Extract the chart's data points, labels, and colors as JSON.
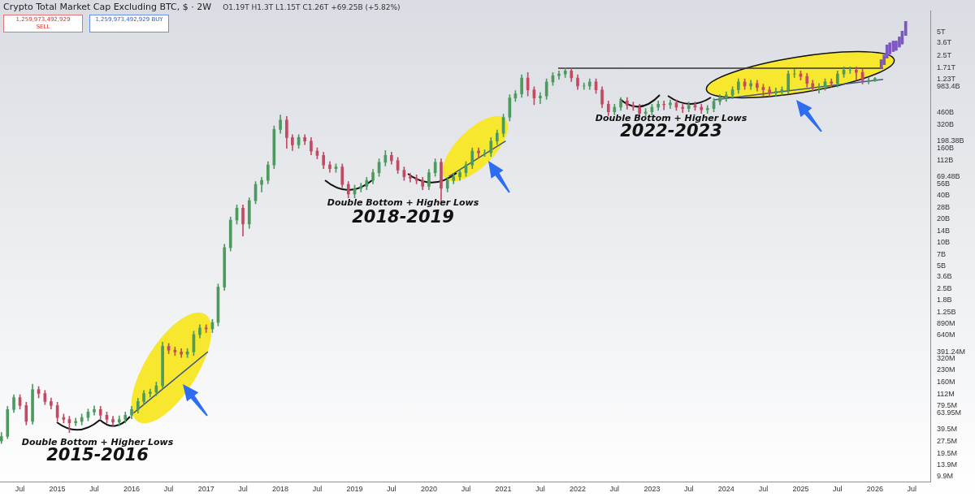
{
  "chart_data": {
    "type": "candlestick",
    "title": "Crypto Total Market Cap Excluding BTC, $ · 2W",
    "subtitle": "O1.19T H1.3T L1.15T C1.26T +69.25B (+5.82%)",
    "log": "y",
    "marker": "none",
    "line_style": "solid",
    "xlim": [
      "2014-03-25",
      "2026-09-30"
    ],
    "xticks": [
      {
        "value": "2014-07",
        "label": "Jul"
      },
      {
        "value": "2015",
        "label": "2015"
      },
      {
        "value": "2015-07",
        "label": "Jul"
      },
      {
        "value": "2016",
        "label": "2016"
      },
      {
        "value": "2016-07",
        "label": "Jul"
      },
      {
        "value": "2017",
        "label": "2017"
      },
      {
        "value": "2017-07",
        "label": "Jul"
      },
      {
        "value": "2018",
        "label": "2018"
      },
      {
        "value": "2018-07",
        "label": "Jul"
      },
      {
        "value": "2019",
        "label": "2019"
      },
      {
        "value": "2019-07",
        "label": "Jul"
      },
      {
        "value": "2020",
        "label": "2020"
      },
      {
        "value": "2020-07",
        "label": "Jul"
      },
      {
        "value": "2021",
        "label": "2021"
      },
      {
        "value": "2021-07",
        "label": "Jul"
      },
      {
        "value": "2022",
        "label": "2022"
      },
      {
        "value": "2022-07",
        "label": "Jul"
      },
      {
        "value": "2023",
        "label": "2023"
      },
      {
        "value": "2023-07",
        "label": "Jul"
      },
      {
        "value": "2024",
        "label": "2024"
      },
      {
        "value": "2024-07",
        "label": "Jul"
      },
      {
        "value": "2025",
        "label": "2025"
      },
      {
        "value": "2025-07",
        "label": "Jul"
      },
      {
        "value": "2026",
        "label": "2026"
      },
      {
        "value": "2026-07",
        "label": "Jul"
      }
    ],
    "ylim": [
      8400000.0,
      9300000000000.0
    ],
    "yticks": [
      {
        "value": 5000000000000.0,
        "label": "5T"
      },
      {
        "value": 3600000000000.0,
        "label": "3.6T"
      },
      {
        "value": 2500000000000.0,
        "label": "2.5T"
      },
      {
        "value": 1710000000000.0,
        "label": "1.71T"
      },
      {
        "value": 1230000000000.0,
        "label": "1.23T"
      },
      {
        "value": 983400000000.0,
        "label": "983.4B"
      },
      {
        "value": 460000000000.0,
        "label": "460B"
      },
      {
        "value": 320000000000.0,
        "label": "320B"
      },
      {
        "value": 198380000000.0,
        "label": "198.38B"
      },
      {
        "value": 160000000000.0,
        "label": "160B"
      },
      {
        "value": 112000000000.0,
        "label": "112B"
      },
      {
        "value": 69480000000.0,
        "label": "69.48B"
      },
      {
        "value": 56000000000.0,
        "label": "56B"
      },
      {
        "value": 40000000000.0,
        "label": "40B"
      },
      {
        "value": 28000000000.0,
        "label": "28B"
      },
      {
        "value": 20000000000.0,
        "label": "20B"
      },
      {
        "value": 14000000000.0,
        "label": "14B"
      },
      {
        "value": 10000000000.0,
        "label": "10B"
      },
      {
        "value": 7000000000.0,
        "label": "7B"
      },
      {
        "value": 5000000000.0,
        "label": "5B"
      },
      {
        "value": 3600000000.0,
        "label": "3.6B"
      },
      {
        "value": 2500000000.0,
        "label": "2.5B"
      },
      {
        "value": 1800000000.0,
        "label": "1.8B"
      },
      {
        "value": 1250000000.0,
        "label": "1.25B"
      },
      {
        "value": 890000000.0,
        "label": "890M"
      },
      {
        "value": 640000000.0,
        "label": "640M"
      },
      {
        "value": 391240000.0,
        "label": "391.24M"
      },
      {
        "value": 320000000.0,
        "label": "320M"
      },
      {
        "value": 230000000.0,
        "label": "230M"
      },
      {
        "value": 160000000.0,
        "label": "160M"
      },
      {
        "value": 112000000.0,
        "label": "112M"
      },
      {
        "value": 79500000.0,
        "label": "79.5M"
      },
      {
        "value": 63950000.0,
        "label": "63.95M"
      },
      {
        "value": 39500000.0,
        "label": "39.5M"
      },
      {
        "value": 27500000.0,
        "label": "27.5M"
      },
      {
        "value": 19500000.0,
        "label": "19.5M"
      },
      {
        "value": 13900000.0,
        "label": "13.9M"
      },
      {
        "value": 9900000.0,
        "label": "9.9M"
      }
    ],
    "annotations": [
      "Double Bottom + Higher Lows",
      "2015-2016",
      "Double Bottom + Higher Lows",
      "2018-2019",
      "Double Bottom + Higher Lows",
      "2022-2023",
      "1,259,973,492,929 SELL",
      "1,259,973,492,929 BUY"
    ],
    "series": [
      {
        "type": "line",
        "color": "#3d5a80",
        "x": [
          "2016-01-10",
          "2017-01-10"
        ],
        "values": [
          63950000.0,
          391240000.0
        ]
      },
      {
        "type": "line",
        "color": "#3d5a80",
        "x": [
          "2020-04-08",
          "2021-01-12"
        ],
        "values": [
          69480000000.0,
          198380000000.0
        ]
      },
      {
        "type": "line",
        "color": "#3d5a80",
        "x": [
          "2023-11-01",
          "2026-02-10"
        ],
        "values": [
          670000000000.0,
          1230000000000.0
        ]
      },
      {
        "type": "line",
        "color": "#333333",
        "x": [
          "2021-09-27",
          "2026-02-10"
        ],
        "values": [
          1710000000000.0,
          1710000000000.0
        ]
      },
      {
        "x": [
          "2014-04",
          "2014-05",
          "2014-06",
          "2014-07",
          "2014-08",
          "2014-09",
          "2014-10",
          "2014-11",
          "2014-12",
          "2015-01",
          "2015-02",
          "2015-03",
          "2015-04",
          "2015-05",
          "2015-06",
          "2015-07",
          "2015-08",
          "2015-09",
          "2015-10",
          "2015-11",
          "2015-12",
          "2016-01",
          "2016-02",
          "2016-03",
          "2016-04",
          "2016-05",
          "2016-06",
          "2016-07",
          "2016-08",
          "2016-09",
          "2016-10",
          "2016-11",
          "2016-12",
          "2017-01",
          "2017-02",
          "2017-03",
          "2017-04",
          "2017-05",
          "2017-06",
          "2017-07",
          "2017-08",
          "2017-09",
          "2017-10",
          "2017-11",
          "2017-12",
          "2018-01",
          "2018-02",
          "2018-03",
          "2018-04",
          "2018-05",
          "2018-06",
          "2018-07",
          "2018-08",
          "2018-09",
          "2018-10",
          "2018-11",
          "2018-12",
          "2019-01",
          "2019-02",
          "2019-03",
          "2019-04",
          "2019-05",
          "2019-06",
          "2019-07",
          "2019-08",
          "2019-09",
          "2019-10",
          "2019-11",
          "2019-12",
          "2020-01",
          "2020-02",
          "2020-03",
          "2020-04",
          "2020-05",
          "2020-06",
          "2020-07",
          "2020-08",
          "2020-09",
          "2020-10",
          "2020-11",
          "2020-12",
          "2021-01",
          "2021-02",
          "2021-03",
          "2021-04",
          "2021-05",
          "2021-06",
          "2021-07",
          "2021-08",
          "2021-09",
          "2021-10",
          "2021-11",
          "2021-12",
          "2022-01",
          "2022-02",
          "2022-03",
          "2022-04",
          "2022-05",
          "2022-06",
          "2022-07",
          "2022-08",
          "2022-09",
          "2022-10",
          "2022-11",
          "2022-12",
          "2023-01",
          "2023-02",
          "2023-03",
          "2023-04",
          "2023-05",
          "2023-06",
          "2023-07",
          "2023-08",
          "2023-09",
          "2023-10",
          "2023-11",
          "2023-12",
          "2024-01",
          "2024-02",
          "2024-03",
          "2024-04",
          "2024-05",
          "2024-06",
          "2024-07",
          "2024-08",
          "2024-09",
          "2024-10",
          "2024-11",
          "2024-12",
          "2025-01",
          "2025-02",
          "2025-03",
          "2025-04",
          "2025-05",
          "2025-06",
          "2025-07",
          "2025-08",
          "2025-09",
          "2025-10",
          "2025-11",
          "2025-12",
          "2026-01"
        ],
        "ohlc": [
          [
            28000000.0,
            36000000.0,
            26000000.0,
            32000000.0
          ],
          [
            32000000.0,
            78000000.0,
            30000000.0,
            71000000.0
          ],
          [
            71000000.0,
            110000000.0,
            65000000.0,
            101000000.0
          ],
          [
            101000000.0,
            110000000.0,
            72000000.0,
            80000000.0
          ],
          [
            80000000.0,
            88000000.0,
            45000000.0,
            50000000.0
          ],
          [
            50000000.0,
            150000000.0,
            46000000.0,
            128000000.0
          ],
          [
            128000000.0,
            140000000.0,
            100000000.0,
            114000000.0
          ],
          [
            114000000.0,
            125000000.0,
            82000000.0,
            90000000.0
          ],
          [
            90000000.0,
            100000000.0,
            72000000.0,
            80000000.0
          ],
          [
            80000000.0,
            88000000.0,
            50000000.0,
            56000000.0
          ],
          [
            56000000.0,
            62000000.0,
            48000000.0,
            53000000.0
          ],
          [
            53000000.0,
            58000000.0,
            36000000.0,
            48000000.0
          ],
          [
            48000000.0,
            55000000.0,
            44000000.0,
            50000000.0
          ],
          [
            50000000.0,
            62000000.0,
            45000000.0,
            56000000.0
          ],
          [
            56000000.0,
            72000000.0,
            51000000.0,
            66000000.0
          ],
          [
            66000000.0,
            79000000.0,
            60000000.0,
            71000000.0
          ],
          [
            71000000.0,
            78000000.0,
            54000000.0,
            60000000.0
          ],
          [
            60000000.0,
            66000000.0,
            48000000.0,
            53000000.0
          ],
          [
            53000000.0,
            58000000.0,
            44000000.0,
            49000000.0
          ],
          [
            49000000.0,
            59000000.0,
            44000000.0,
            53000000.0
          ],
          [
            53000000.0,
            66000000.0,
            48000000.0,
            60000000.0
          ],
          [
            60000000.0,
            78000000.0,
            54000000.0,
            71000000.0
          ],
          [
            71000000.0,
            99000000.0,
            64000000.0,
            90000000.0
          ],
          [
            90000000.0,
            125000000.0,
            81000000.0,
            114000000.0
          ],
          [
            114000000.0,
            130000000.0,
            103000000.0,
            119000000.0
          ],
          [
            119000000.0,
            160000000.0,
            107000000.0,
            143000000.0
          ],
          [
            143000000.0,
            520000000.0,
            130000000.0,
            460000000.0
          ],
          [
            460000000.0,
            500000000.0,
            370000000.0,
            410000000.0
          ],
          [
            410000000.0,
            450000000.0,
            350000000.0,
            390000000.0
          ],
          [
            390000000.0,
            430000000.0,
            330000000.0,
            365000000.0
          ],
          [
            365000000.0,
            430000000.0,
            330000000.0,
            390000000.0
          ],
          [
            390000000.0,
            720000000.0,
            350000000.0,
            650000000.0
          ],
          [
            650000000.0,
            870000000.0,
            590000000.0,
            790000000.0
          ],
          [
            790000000.0,
            870000000.0,
            690000000.0,
            770000000.0
          ],
          [
            770000000.0,
            1020000000.0,
            690000000.0,
            930000000.0
          ],
          [
            930000000.0,
            2900000000.0,
            840000000.0,
            2650000000.0
          ],
          [
            2650000000.0,
            9400000000.0,
            2400000000.0,
            8500000000.0
          ],
          [
            8500000000.0,
            21000000000.0,
            7700000000.0,
            19200000000.0
          ],
          [
            19200000000.0,
            30000000000.0,
            17000000000.0,
            27300000000.0
          ],
          [
            27300000000.0,
            30000000000.0,
            12000000000.0,
            17100000000.0
          ],
          [
            17100000000.0,
            37000000000.0,
            15000000000.0,
            34000000000.0
          ],
          [
            34000000000.0,
            60000000000.0,
            31000000000.0,
            55000000000.0
          ],
          [
            55000000000.0,
            68000000000.0,
            44000000000.0,
            62000000000.0
          ],
          [
            62000000000.0,
            108000000000.0,
            56000000000.0,
            98000000000.0
          ],
          [
            98000000000.0,
            310000000000.0,
            88000000000.0,
            280000000000.0
          ],
          [
            280000000000.0,
            430000000000.0,
            250000000000.0,
            370000000000.0
          ],
          [
            370000000000.0,
            410000000000.0,
            160000000000.0,
            220000000000.0
          ],
          [
            220000000000.0,
            240000000000.0,
            150000000000.0,
            177000000000.0
          ],
          [
            177000000000.0,
            240000000000.0,
            160000000000.0,
            220000000000.0
          ],
          [
            220000000000.0,
            240000000000.0,
            178000000000.0,
            198000000000.0
          ],
          [
            198000000000.0,
            220000000000.0,
            132000000000.0,
            147000000000.0
          ],
          [
            147000000000.0,
            162000000000.0,
            117000000000.0,
            130000000000.0
          ],
          [
            130000000000.0,
            143000000000.0,
            88000000000.0,
            98000000000.0
          ],
          [
            98000000000.0,
            108000000000.0,
            79000000000.0,
            88000000000.0
          ],
          [
            88000000000.0,
            101000000000.0,
            79000000000.0,
            92000000000.0
          ],
          [
            92000000000.0,
            101000000000.0,
            50000000000.0,
            55000000000.0
          ],
          [
            55000000000.0,
            60000000000.0,
            37000000000.0,
            41500000000.0
          ],
          [
            41500000000.0,
            54000000000.0,
            37000000000.0,
            49000000000.0
          ],
          [
            49000000000.0,
            57000000000.0,
            44000000000.0,
            52000000000.0
          ],
          [
            52000000000.0,
            68000000000.0,
            47000000000.0,
            62000000000.0
          ],
          [
            62000000000.0,
            86000000000.0,
            56000000000.0,
            78000000000.0
          ],
          [
            78000000000.0,
            117000000000.0,
            70000000000.0,
            106000000000.0
          ],
          [
            106000000000.0,
            150000000000.0,
            95000000000.0,
            130000000000.0
          ],
          [
            130000000000.0,
            143000000000.0,
            100000000000.0,
            111000000000.0
          ],
          [
            111000000000.0,
            122000000000.0,
            76000000000.0,
            84000000000.0
          ],
          [
            84000000000.0,
            92000000000.0,
            62000000000.0,
            69000000000.0
          ],
          [
            69000000000.0,
            76000000000.0,
            59000000000.0,
            66000000000.0
          ],
          [
            66000000000.0,
            73000000000.0,
            56000000000.0,
            62000000000.0
          ],
          [
            62000000000.0,
            68000000000.0,
            47000000000.0,
            52000000000.0
          ],
          [
            52000000000.0,
            86000000000.0,
            47000000000.0,
            78000000000.0
          ],
          [
            78000000000.0,
            117000000000.0,
            70000000000.0,
            106000000000.0
          ],
          [
            106000000000.0,
            117000000000.0,
            33000000000.0,
            49000000000.0
          ],
          [
            49000000000.0,
            68000000000.0,
            44000000000.0,
            62000000000.0
          ],
          [
            62000000000.0,
            76000000000.0,
            56000000000.0,
            69000000000.0
          ],
          [
            69000000000.0,
            86000000000.0,
            62000000000.0,
            78000000000.0
          ],
          [
            78000000000.0,
            108000000000.0,
            70000000000.0,
            98000000000.0
          ],
          [
            98000000000.0,
            162000000000.0,
            88000000000.0,
            147000000000.0
          ],
          [
            147000000000.0,
            162000000000.0,
            120000000000.0,
            140000000000.0
          ],
          [
            140000000000.0,
            154000000000.0,
            126000000000.0,
            140000000000.0
          ],
          [
            140000000000.0,
            220000000000.0,
            126000000000.0,
            198000000000.0
          ],
          [
            198000000000.0,
            275000000000.0,
            178000000000.0,
            250000000000.0
          ],
          [
            250000000000.0,
            440000000000.0,
            225000000000.0,
            400000000000.0
          ],
          [
            400000000000.0,
            780000000000.0,
            360000000000.0,
            710000000000.0
          ],
          [
            710000000000.0,
            880000000000.0,
            640000000000.0,
            800000000000.0
          ],
          [
            800000000000.0,
            1410000000000.0,
            720000000000.0,
            1280000000000.0
          ],
          [
            1280000000000.0,
            1500000000000.0,
            750000000000.0,
            900000000000.0
          ],
          [
            900000000000.0,
            990000000000.0,
            580000000000.0,
            710000000000.0
          ],
          [
            710000000000.0,
            830000000000.0,
            600000000000.0,
            750000000000.0
          ],
          [
            750000000000.0,
            1250000000000.0,
            680000000000.0,
            1140000000000.0
          ],
          [
            1140000000000.0,
            1500000000000.0,
            1030000000000.0,
            1370000000000.0
          ],
          [
            1370000000000.0,
            1580000000000.0,
            1230000000000.0,
            1440000000000.0
          ],
          [
            1440000000000.0,
            1740000000000.0,
            1300000000000.0,
            1580000000000.0
          ],
          [
            1580000000000.0,
            1700000000000.0,
            1150000000000.0,
            1280000000000.0
          ],
          [
            1280000000000.0,
            1410000000000.0,
            910000000000.0,
            1010000000000.0
          ],
          [
            1010000000000.0,
            1110000000000.0,
            910000000000.0,
            1010000000000.0
          ],
          [
            1010000000000.0,
            1250000000000.0,
            910000000000.0,
            1140000000000.0
          ],
          [
            1140000000000.0,
            1250000000000.0,
            810000000000.0,
            900000000000.0
          ],
          [
            900000000000.0,
            990000000000.0,
            530000000000.0,
            590000000000.0
          ],
          [
            590000000000.0,
            650000000000.0,
            420000000000.0,
            470000000000.0
          ],
          [
            470000000000.0,
            590000000000.0,
            430000000000.0,
            540000000000.0
          ],
          [
            540000000000.0,
            720000000000.0,
            490000000000.0,
            650000000000.0
          ],
          [
            650000000000.0,
            720000000000.0,
            510000000000.0,
            570000000000.0
          ],
          [
            570000000000.0,
            630000000000.0,
            490000000000.0,
            540000000000.0
          ],
          [
            540000000000.0,
            590000000000.0,
            400000000000.0,
            450000000000.0
          ],
          [
            450000000000.0,
            520000000000.0,
            410000000000.0,
            470000000000.0
          ],
          [
            470000000000.0,
            590000000000.0,
            430000000000.0,
            540000000000.0
          ],
          [
            540000000000.0,
            650000000000.0,
            490000000000.0,
            590000000000.0
          ],
          [
            590000000000.0,
            650000000000.0,
            500000000000.0,
            580000000000.0
          ],
          [
            580000000000.0,
            670000000000.0,
            520000000000.0,
            610000000000.0
          ],
          [
            610000000000.0,
            670000000000.0,
            490000000000.0,
            540000000000.0
          ],
          [
            540000000000.0,
            590000000000.0,
            460000000000.0,
            520000000000.0
          ],
          [
            520000000000.0,
            630000000000.0,
            470000000000.0,
            570000000000.0
          ],
          [
            570000000000.0,
            630000000000.0,
            490000000000.0,
            540000000000.0
          ],
          [
            540000000000.0,
            590000000000.0,
            450000000000.0,
            500000000000.0
          ],
          [
            500000000000.0,
            570000000000.0,
            450000000000.0,
            520000000000.0
          ],
          [
            520000000000.0,
            700000000000.0,
            470000000000.0,
            640000000000.0
          ],
          [
            640000000000.0,
            780000000000.0,
            580000000000.0,
            710000000000.0
          ],
          [
            710000000000.0,
            850000000000.0,
            640000000000.0,
            770000000000.0
          ],
          [
            770000000000.0,
            990000000000.0,
            690000000000.0,
            900000000000.0
          ],
          [
            900000000000.0,
            1250000000000.0,
            810000000000.0,
            1140000000000.0
          ],
          [
            1140000000000.0,
            1250000000000.0,
            910000000000.0,
            1010000000000.0
          ],
          [
            1010000000000.0,
            1200000000000.0,
            910000000000.0,
            1090000000000.0
          ],
          [
            1090000000000.0,
            1200000000000.0,
            870000000000.0,
            970000000000.0
          ],
          [
            970000000000.0,
            1070000000000.0,
            750000000000.0,
            900000000000.0
          ],
          [
            900000000000.0,
            990000000000.0,
            740000000000.0,
            820000000000.0
          ],
          [
            820000000000.0,
            950000000000.0,
            740000000000.0,
            860000000000.0
          ],
          [
            860000000000.0,
            990000000000.0,
            770000000000.0,
            900000000000.0
          ],
          [
            900000000000.0,
            1580000000000.0,
            810000000000.0,
            1440000000000.0
          ],
          [
            1440000000000.0,
            1650000000000.0,
            1300000000000.0,
            1440000000000.0
          ],
          [
            1440000000000.0,
            1580000000000.0,
            1200000000000.0,
            1340000000000.0
          ],
          [
            1340000000000.0,
            1470000000000.0,
            980000000000.0,
            1090000000000.0
          ],
          [
            1090000000000.0,
            1200000000000.0,
            870000000000.0,
            970000000000.0
          ],
          [
            970000000000.0,
            1090000000000.0,
            820000000000.0,
            990000000000.0
          ],
          [
            990000000000.0,
            1250000000000.0,
            890000000000.0,
            1140000000000.0
          ],
          [
            1140000000000.0,
            1250000000000.0,
            980000000000.0,
            1090000000000.0
          ],
          [
            1090000000000.0,
            1580000000000.0,
            980000000000.0,
            1440000000000.0
          ],
          [
            1440000000000.0,
            1780000000000.0,
            1300000000000.0,
            1620000000000.0
          ],
          [
            1620000000000.0,
            1780000000000.0,
            1460000000000.0,
            1620000000000.0
          ],
          [
            1620000000000.0,
            1780000000000.0,
            1200000000000.0,
            1510000000000.0
          ],
          [
            1510000000000.0,
            1660000000000.0,
            1070000000000.0,
            1190000000000.0
          ],
          [
            1190000000000.0,
            1310000000000.0,
            1070000000000.0,
            1190000000000.0
          ],
          [
            1190000000000.0,
            1300000000000.0,
            1150000000000.0,
            1260000000000.0
          ]
        ],
        "colors": [
          "#4c9a5e",
          "#4c9a5e",
          "#4c9a5e",
          "#c24a63",
          "#c24a63",
          "#4c9a5e",
          "#c24a63",
          "#c24a63",
          "#c24a63",
          "#c24a63",
          "#c24a63",
          "#c24a63",
          "#4c9a5e",
          "#4c9a5e",
          "#4c9a5e",
          "#4c9a5e",
          "#c24a63",
          "#c24a63",
          "#c24a63",
          "#4c9a5e",
          "#4c9a5e",
          "#4c9a5e",
          "#4c9a5e",
          "#4c9a5e",
          "#4c9a5e",
          "#4c9a5e",
          "#4c9a5e",
          "#c24a63",
          "#c24a63",
          "#c24a63",
          "#4c9a5e",
          "#4c9a5e",
          "#4c9a5e",
          "#c24a63",
          "#4c9a5e",
          "#4c9a5e",
          "#4c9a5e",
          "#4c9a5e",
          "#4c9a5e",
          "#c24a63",
          "#4c9a5e",
          "#4c9a5e",
          "#4c9a5e",
          "#4c9a5e",
          "#4c9a5e",
          "#4c9a5e",
          "#c24a63",
          "#c24a63",
          "#4c9a5e",
          "#c24a63",
          "#c24a63",
          "#c24a63",
          "#c24a63",
          "#c24a63",
          "#4c9a5e",
          "#c24a63",
          "#c24a63",
          "#4c9a5e",
          "#4c9a5e",
          "#4c9a5e",
          "#4c9a5e",
          "#4c9a5e",
          "#4c9a5e",
          "#c24a63",
          "#c24a63",
          "#c24a63",
          "#c24a63",
          "#c24a63",
          "#c24a63",
          "#4c9a5e",
          "#4c9a5e",
          "#c24a63",
          "#4c9a5e",
          "#4c9a5e",
          "#4c9a5e",
          "#4c9a5e",
          "#4c9a5e",
          "#c24a63",
          "#4c9a5e",
          "#4c9a5e",
          "#4c9a5e",
          "#4c9a5e",
          "#4c9a5e",
          "#4c9a5e",
          "#4c9a5e",
          "#c24a63",
          "#c24a63",
          "#4c9a5e",
          "#4c9a5e",
          "#4c9a5e",
          "#4c9a5e",
          "#4c9a5e",
          "#c24a63",
          "#c24a63",
          "#4c9a5e",
          "#4c9a5e",
          "#c24a63",
          "#c24a63",
          "#c24a63",
          "#4c9a5e",
          "#4c9a5e",
          "#c24a63",
          "#c24a63",
          "#c24a63",
          "#4c9a5e",
          "#4c9a5e",
          "#4c9a5e",
          "#c24a63",
          "#4c9a5e",
          "#c24a63",
          "#c24a63",
          "#4c9a5e",
          "#c24a63",
          "#c24a63",
          "#4c9a5e",
          "#4c9a5e",
          "#4c9a5e",
          "#4c9a5e",
          "#4c9a5e",
          "#4c9a5e",
          "#c24a63",
          "#4c9a5e",
          "#c24a63",
          "#c24a63",
          "#c24a63",
          "#4c9a5e",
          "#4c9a5e",
          "#4c9a5e",
          "#4c9a5e",
          "#c24a63",
          "#c24a63",
          "#c24a63",
          "#4c9a5e",
          "#4c9a5e",
          "#c24a63",
          "#4c9a5e",
          "#4c9a5e",
          "#4c9a5e",
          "#c24a63",
          "#c24a63",
          "#4c9a5e",
          "#4c9a5e"
        ]
      },
      {
        "color": "#7e57c2",
        "x": [
          "2026-02-01",
          "2026-02-15",
          "2026-03-01",
          "2026-03-15",
          "2026-04-01",
          "2026-04-15",
          "2026-05-01",
          "2026-05-15",
          "2026-06-01"
        ],
        "ohlc": [
          [
            1700000000000.0,
            2200000000000.0,
            1700000000000.0,
            2200000000000.0
          ],
          [
            1900000000000.0,
            2500000000000.0,
            1900000000000.0,
            2500000000000.0
          ],
          [
            2300000000000.0,
            3400000000000.0,
            2300000000000.0,
            3400000000000.0
          ],
          [
            2600000000000.0,
            3600000000000.0,
            2600000000000.0,
            3600000000000.0
          ],
          [
            2800000000000.0,
            3800000000000.0,
            2800000000000.0,
            3800000000000.0
          ],
          [
            2900000000000.0,
            3800000000000.0,
            2900000000000.0,
            3800000000000.0
          ],
          [
            3200000000000.0,
            4300000000000.0,
            3200000000000.0,
            4300000000000.0
          ],
          [
            3500000000000.0,
            5100000000000.0,
            3500000000000.0,
            5100000000000.0
          ],
          [
            4500000000000.0,
            6800000000000.0,
            4500000000000.0,
            6800000000000.0
          ]
        ]
      }
    ]
  }
}
